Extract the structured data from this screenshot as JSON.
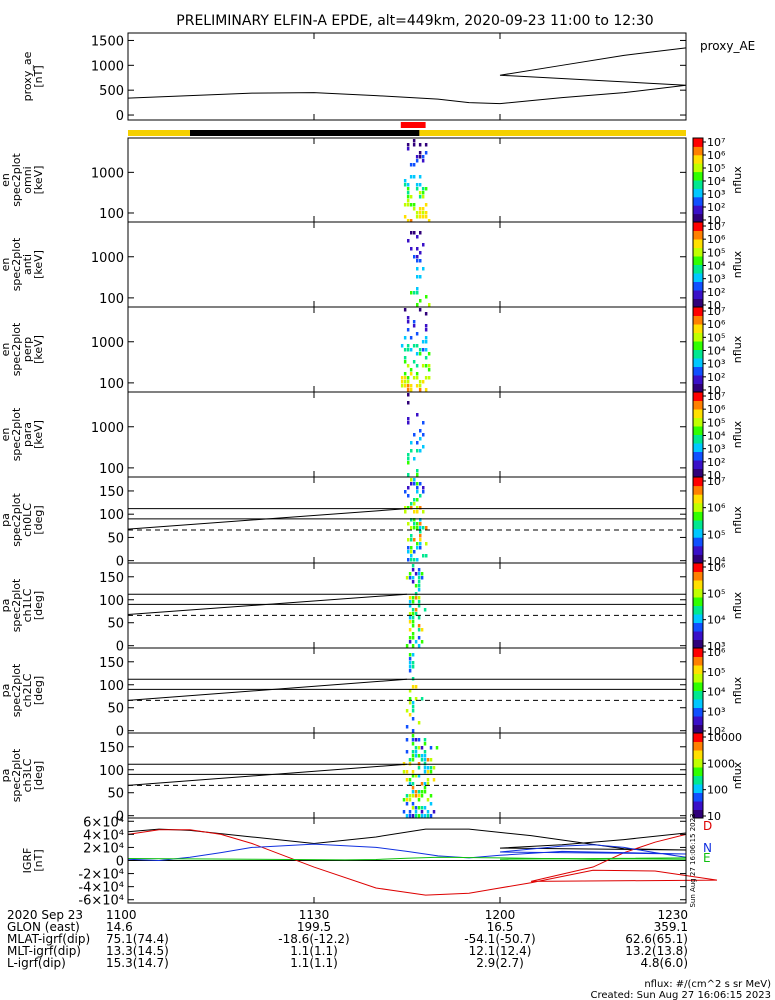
{
  "title": "PRELIMINARY ELFIN-A EPDE, alt=449km, 2020-09-23 11:00 to 12:30",
  "colors": {
    "axis": "#000000",
    "bar_yellow": "#f5d000",
    "bar_black": "#000000",
    "bar_red": "#ff0000",
    "igrf_d": "#dd0000",
    "igrf_n": "#1030e0",
    "igrf_e": "#10c010",
    "igrf_total": "#000000"
  },
  "colorbar_stops": [
    "#30007a",
    "#3a10c8",
    "#1050ff",
    "#00c8ff",
    "#00e890",
    "#30ff00",
    "#c0ff00",
    "#ffe000",
    "#ff8000",
    "#ff0000"
  ],
  "status_bars": [
    {
      "color": "yellow",
      "x_start": 1100,
      "x_end": 1110
    },
    {
      "color": "black",
      "x_start": 1110,
      "x_end": 1147
    },
    {
      "color": "yellow",
      "x_start": 1147,
      "x_end": 1230
    },
    {
      "color": "red",
      "x_start": 1144,
      "x_end": 1148
    }
  ],
  "chart_data": [
    {
      "type": "line",
      "ylabel": "proxy_ae\n[nT]",
      "legend": "proxy_AE",
      "yticks": [
        "0",
        "500",
        "1000",
        "1500"
      ],
      "ylim": [
        -100,
        1650
      ],
      "x": [
        1100,
        1110,
        1120,
        1130,
        1140,
        1150,
        1155,
        1160,
        1165,
        1170,
        1180,
        1190,
        1200,
        1210,
        1220,
        1230
      ],
      "values": [
        340,
        390,
        440,
        450,
        390,
        320,
        250,
        230,
        290,
        350,
        450,
        600,
        800,
        1000,
        1200,
        1350
      ]
    },
    {
      "type": "heatmap",
      "ylabel": "ela\npef\nen\nspec2plot\nomni\n[keV]",
      "yticks": [
        "100",
        "1000"
      ],
      "yscale": "log",
      "ylim": [
        60,
        7000
      ],
      "cbar": {
        "label": "nflux",
        "ticks": [
          "10",
          "10²",
          "10³",
          "10⁴",
          "10⁵",
          "10⁶",
          "10⁷"
        ],
        "scale": "log"
      },
      "active_x": [
        1144.5,
        1147.5
      ],
      "density": "high"
    },
    {
      "type": "heatmap",
      "ylabel": "ela\npef\nen\nspec2plot\nanti\n[keV]",
      "yticks": [
        "100",
        "1000"
      ],
      "yscale": "log",
      "ylim": [
        60,
        7000
      ],
      "cbar": {
        "label": "nflux",
        "ticks": [
          "10",
          "10²",
          "10³",
          "10⁴",
          "10⁵",
          "10⁶",
          "10⁷"
        ],
        "scale": "log"
      },
      "active_x": [
        1145,
        1147.5
      ],
      "density": "low"
    },
    {
      "type": "heatmap",
      "ylabel": "ela\npef\nen\nspec2plot\nperp\n[keV]",
      "yticks": [
        "100",
        "1000"
      ],
      "yscale": "log",
      "ylim": [
        60,
        7000
      ],
      "cbar": {
        "label": "nflux",
        "ticks": [
          "10",
          "10²",
          "10³",
          "10⁴",
          "10⁵",
          "10⁶",
          "10⁷"
        ],
        "scale": "log"
      },
      "active_x": [
        1144.5,
        1147.5
      ],
      "density": "high"
    },
    {
      "type": "heatmap",
      "ylabel": "ela\npef\nen\nspec2plot\npara\n[keV]",
      "yticks": [
        "100",
        "1000"
      ],
      "yscale": "log",
      "ylim": [
        60,
        7000
      ],
      "cbar": {
        "label": "nflux",
        "ticks": [
          "10",
          "10²",
          "10³",
          "10⁴",
          "10⁵",
          "10⁶",
          "10⁷"
        ],
        "scale": "log"
      },
      "active_x": [
        1145,
        1147.5
      ],
      "density": "low"
    },
    {
      "type": "heatmap",
      "ylabel": "ela\npef\npa\nspec2plot\nch0LC\n[deg]",
      "yticks": [
        "0",
        "50",
        "100",
        "150"
      ],
      "ylim": [
        -5,
        180
      ],
      "cbar": {
        "label": "nflux",
        "ticks": [
          "10⁴",
          "10⁵",
          "10⁶",
          "10⁷"
        ],
        "scale": "log"
      },
      "active_x": [
        1145,
        1147
      ],
      "lines": {
        "solid": [
          90,
          112
        ],
        "dashed": 66,
        "rising": {
          "from": [
            1100,
            68
          ],
          "to": [
            1145,
            112
          ]
        }
      }
    },
    {
      "type": "heatmap",
      "ylabel": "ela\npef\npa\nspec2plot\nch1LC\n[deg]",
      "yticks": [
        "0",
        "50",
        "100",
        "150"
      ],
      "ylim": [
        -5,
        180
      ],
      "cbar": {
        "label": "nflux",
        "ticks": [
          "10³",
          "10⁴",
          "10⁵",
          "10⁶"
        ],
        "scale": "log"
      },
      "active_x": [
        1145.3,
        1146.7
      ],
      "lines": {
        "solid": [
          90,
          112
        ],
        "dashed": 66,
        "rising": {
          "from": [
            1100,
            68
          ],
          "to": [
            1145,
            112
          ]
        }
      }
    },
    {
      "type": "heatmap",
      "ylabel": "ela\npef\npa\nspec2plot\nch2LC\n[deg]",
      "yticks": [
        "0",
        "50",
        "100",
        "150"
      ],
      "ylim": [
        -5,
        180
      ],
      "cbar": {
        "label": "nflux",
        "ticks": [
          "10²",
          "10³",
          "10⁴",
          "10⁵",
          "10⁶"
        ],
        "scale": "log"
      },
      "active_x": [
        1145.3,
        1146
      ],
      "lines": {
        "solid": [
          90,
          112
        ],
        "dashed": 66,
        "rising": {
          "from": [
            1100,
            66
          ],
          "to": [
            1145,
            112
          ]
        }
      }
    },
    {
      "type": "heatmap",
      "ylabel": "ela\npef\npa\nspec2plot\nch3LC\n[deg]",
      "yticks": [
        "0",
        "50",
        "100",
        "150"
      ],
      "ylim": [
        -5,
        180
      ],
      "cbar": {
        "label": "nflux",
        "ticks": [
          "10",
          "100",
          "1000",
          "10000"
        ],
        "scale": "log"
      },
      "active_x": [
        1144.8,
        1148.5
      ],
      "lines": {
        "solid": [
          90,
          112
        ],
        "dashed": 66,
        "rising": {
          "from": [
            1100,
            66
          ],
          "to": [
            1145,
            112
          ]
        }
      }
    },
    {
      "type": "line",
      "ylabel": "IGRF\n[nT]",
      "yticks": [
        "-6×10⁴",
        "-4×10⁴",
        "-2×10⁴",
        "0",
        "2×10⁴",
        "4×10⁴",
        "6×10⁴"
      ],
      "ylim": [
        -65000,
        65000
      ],
      "legend_letters": [
        "D",
        "N",
        "E"
      ],
      "side_text": "Sun Aug 27 16:06:15 2023",
      "series": [
        {
          "color_key": "igrf_total",
          "x": [
            1100,
            1105,
            1110,
            1120,
            1130,
            1140,
            1148,
            1155,
            1165,
            1180,
            1190,
            1200,
            1210,
            1220,
            1230
          ],
          "values": [
            44000,
            48000,
            46000,
            36000,
            26000,
            36000,
            48000,
            48000,
            38000,
            18000,
            16000,
            19000,
            24000,
            32000,
            42000
          ]
        },
        {
          "color_key": "igrf_d",
          "x": [
            1100,
            1105,
            1110,
            1115,
            1120,
            1130,
            1140,
            1148,
            1155,
            1165,
            1175,
            1185,
            1195,
            1205,
            1215,
            1220,
            1225,
            1230
          ],
          "values": [
            40000,
            47000,
            47000,
            40000,
            26000,
            -10000,
            -42000,
            -53000,
            -50000,
            -34000,
            -15000,
            -16000,
            -30000,
            -32000,
            -10000,
            12000,
            28000,
            40000
          ]
        },
        {
          "color_key": "igrf_n",
          "x": [
            1100,
            1105,
            1110,
            1115,
            1120,
            1130,
            1140,
            1145,
            1150,
            1155,
            1160,
            1170,
            1180,
            1190,
            1200,
            1210,
            1215,
            1220,
            1225,
            1230
          ],
          "values": [
            2000,
            0,
            5000,
            12000,
            20000,
            25000,
            20000,
            14000,
            7000,
            4000,
            8000,
            14000,
            12000,
            10000,
            13000,
            22000,
            24000,
            20000,
            12000,
            5000
          ]
        },
        {
          "color_key": "igrf_e",
          "x": [
            1100,
            1120,
            1135,
            1140,
            1145,
            1150,
            1160,
            1175,
            1190,
            1200,
            1210,
            1220,
            1230
          ],
          "values": [
            3000,
            2000,
            1000,
            1500,
            3500,
            5000,
            4000,
            2000,
            4000,
            2000,
            3000,
            2500,
            2000
          ]
        }
      ]
    }
  ],
  "x_axis": {
    "range": [
      1100,
      1230
    ],
    "tick_values": [
      1100,
      1130,
      1200,
      1230
    ],
    "rows": [
      {
        "label": "2020 Sep 23",
        "values": [
          "1100",
          "1130",
          "1200",
          "1230"
        ]
      },
      {
        "label": "GLON (east)",
        "values": [
          "14.6",
          "199.5",
          "16.5",
          "359.1"
        ]
      },
      {
        "label": "MLAT-igrf(dip)",
        "values": [
          "75.1(74.4)",
          "-18.6(-12.2)",
          "-54.1(-50.7)",
          "62.6(65.1)"
        ]
      },
      {
        "label": "MLT-igrf(dip)",
        "values": [
          "13.3(14.5)",
          "1.1(1.1)",
          "12.1(12.4)",
          "13.2(13.8)"
        ]
      },
      {
        "label": "L-igrf(dip)",
        "values": [
          "15.3(14.7)",
          "1.1(1.1)",
          "2.9(2.7)",
          "4.8(6.0)"
        ]
      }
    ]
  },
  "footer": {
    "units": "nflux: #/(cm^2 s sr MeV)",
    "created": "Created: Sun Aug 27 16:06:15 2023"
  }
}
